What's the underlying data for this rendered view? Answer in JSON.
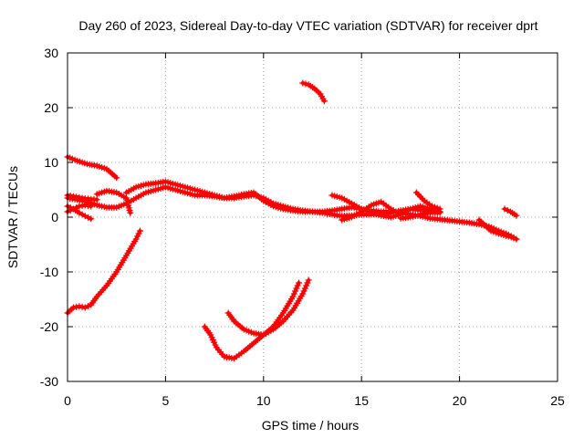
{
  "chart_data": {
    "type": "scatter",
    "title": "Day 260 of 2023, Sidereal Day-to-day VTEC variation (SDTVAR) for receiver dprt",
    "xlabel": "GPS time / hours",
    "ylabel": "SDTVAR / TECUs",
    "xlim": [
      0,
      25
    ],
    "ylim": [
      -30,
      30
    ],
    "xticks": [
      0,
      5,
      10,
      15,
      20,
      25
    ],
    "yticks": [
      -30,
      -20,
      -10,
      0,
      10,
      20,
      30
    ],
    "xtick_labels": [
      "0",
      "5",
      "10",
      "15",
      "20",
      "25"
    ],
    "ytick_labels": [
      "-30",
      "-20",
      "-10",
      "0",
      "10",
      "20",
      "30"
    ],
    "grid": true,
    "marker": "plus",
    "series_color": "#ff0000",
    "tracks": [
      {
        "name": "track-1",
        "x": [
          0.0,
          0.5,
          1.0,
          1.5,
          2.0,
          2.5
        ],
        "y": [
          11.0,
          10.3,
          9.7,
          9.4,
          8.8,
          7.2
        ]
      },
      {
        "name": "track-2",
        "x": [
          0.0,
          0.5,
          1.0,
          1.5,
          2.0,
          2.5,
          3.0,
          3.5,
          4.0,
          4.5,
          5.0,
          5.5,
          6.0,
          6.5,
          7.0,
          7.5,
          8.0,
          8.5,
          9.0,
          9.5,
          10.0,
          10.5,
          11.0,
          11.5,
          12.0,
          12.5,
          13.0,
          13.5,
          14.0,
          14.5,
          15.0,
          15.5,
          16.0,
          16.5,
          17.0,
          17.5,
          18.0,
          18.5,
          19.0
        ],
        "y": [
          3.5,
          3.2,
          2.8,
          2.2,
          1.8,
          1.8,
          2.5,
          3.5,
          4.5,
          5.0,
          5.5,
          5.0,
          4.5,
          4.0,
          4.0,
          3.8,
          3.5,
          3.8,
          4.2,
          4.5,
          3.0,
          2.0,
          1.5,
          1.2,
          1.0,
          1.0,
          0.8,
          0.5,
          0.2,
          0.3,
          0.5,
          0.5,
          0.6,
          0.8,
          1.2,
          1.5,
          1.3,
          1.0,
          0.8
        ]
      },
      {
        "name": "track-3",
        "x": [
          0.0,
          0.3,
          0.6,
          0.9,
          1.2,
          1.5
        ],
        "y": [
          4.0,
          3.8,
          3.6,
          3.4,
          3.3,
          3.2
        ]
      },
      {
        "name": "track-4",
        "x": [
          0.0,
          0.3,
          0.6,
          0.9,
          1.2
        ],
        "y": [
          2.0,
          1.5,
          0.8,
          0.2,
          -0.3
        ]
      },
      {
        "name": "track-5",
        "x": [
          0.0,
          0.3,
          0.6,
          0.9,
          1.2
        ],
        "y": [
          1.0,
          1.5,
          2.0,
          2.2,
          2.0
        ]
      },
      {
        "name": "track-6",
        "x": [
          1.5,
          2.0,
          2.5,
          3.0,
          3.2
        ],
        "y": [
          4.2,
          4.8,
          4.5,
          3.5,
          0.8
        ]
      },
      {
        "name": "track-7",
        "x": [
          3.0,
          3.5,
          4.0,
          4.5,
          5.0,
          5.5,
          6.0,
          6.5,
          7.0,
          7.5,
          8.0,
          8.5,
          9.0,
          9.5,
          10.0,
          10.5,
          11.0,
          11.5,
          12.0,
          12.5,
          13.0,
          13.5,
          14.0,
          14.5,
          15.0,
          15.5,
          16.0,
          16.5,
          17.0,
          17.5,
          18.0,
          18.5,
          19.0,
          19.5,
          20.0,
          20.5,
          21.0,
          21.5,
          22.0,
          22.5,
          22.9
        ],
        "y": [
          4.5,
          5.5,
          6.0,
          6.2,
          6.5,
          6.0,
          5.5,
          5.0,
          4.5,
          4.0,
          3.5,
          3.5,
          3.8,
          4.0,
          3.5,
          2.5,
          2.0,
          1.5,
          1.2,
          1.0,
          1.0,
          1.2,
          1.5,
          1.8,
          1.5,
          1.2,
          1.0,
          1.0,
          0.8,
          0.5,
          0.2,
          -0.2,
          -0.4,
          -0.6,
          -0.8,
          -1.0,
          -1.3,
          -1.7,
          -2.5,
          -3.2,
          -4.0
        ]
      },
      {
        "name": "track-8",
        "x": [
          13.5,
          14.0,
          14.5,
          15.0,
          15.5,
          16.0,
          16.5,
          17.0,
          17.5,
          18.0,
          18.5,
          19.0
        ],
        "y": [
          4.0,
          3.5,
          2.5,
          1.5,
          0.8,
          0.3,
          0.0,
          0.5,
          1.5,
          2.0,
          1.5,
          1.0
        ]
      },
      {
        "name": "track-9",
        "x": [
          14.0,
          14.5,
          15.0,
          15.5,
          16.0,
          16.5,
          17.0
        ],
        "y": [
          -0.5,
          0.0,
          1.0,
          2.2,
          2.8,
          1.5,
          0.5
        ]
      },
      {
        "name": "track-10",
        "x": [
          17.0,
          17.5,
          18.0,
          18.5,
          19.0
        ],
        "y": [
          -0.2,
          0.0,
          0.5,
          0.8,
          1.0
        ]
      },
      {
        "name": "track-11",
        "x": [
          17.8,
          18.2,
          18.6,
          19.0
        ],
        "y": [
          4.5,
          3.0,
          2.0,
          1.5
        ]
      },
      {
        "name": "track-12",
        "x": [
          21.0,
          21.3,
          21.6,
          22.0,
          22.5,
          22.9
        ],
        "y": [
          -0.5,
          -1.5,
          -2.5,
          -3.0,
          -3.5,
          -4.0
        ]
      },
      {
        "name": "track-13",
        "x": [
          22.3,
          22.6,
          22.9
        ],
        "y": [
          1.5,
          1.0,
          0.3
        ]
      },
      {
        "name": "track-14",
        "x": [
          0.0,
          0.3,
          0.6,
          0.9,
          1.2,
          1.5,
          2.0,
          2.5,
          3.0,
          3.5,
          3.7
        ],
        "y": [
          -17.5,
          -16.5,
          -16.3,
          -16.5,
          -16.0,
          -14.5,
          -12.5,
          -10.0,
          -7.0,
          -4.0,
          -2.5
        ]
      },
      {
        "name": "track-15",
        "x": [
          7.0,
          7.3,
          7.6,
          8.0,
          8.5,
          9.0,
          9.5,
          10.0,
          10.5,
          11.0,
          11.5,
          11.8
        ],
        "y": [
          -20.0,
          -21.5,
          -23.8,
          -25.5,
          -25.8,
          -24.5,
          -23.0,
          -21.5,
          -20.0,
          -17.5,
          -14.5,
          -12.0
        ]
      },
      {
        "name": "track-16",
        "x": [
          8.2,
          8.5,
          9.0,
          9.5,
          10.0,
          10.5,
          11.0,
          11.5,
          12.0,
          12.3
        ],
        "y": [
          -17.5,
          -19.0,
          -20.5,
          -21.2,
          -21.5,
          -20.5,
          -19.0,
          -17.0,
          -14.0,
          -11.5
        ]
      },
      {
        "name": "track-17",
        "x": [
          12.0,
          12.3,
          12.6,
          12.9,
          13.1
        ],
        "y": [
          24.5,
          24.2,
          23.5,
          22.5,
          21.2
        ]
      }
    ]
  }
}
